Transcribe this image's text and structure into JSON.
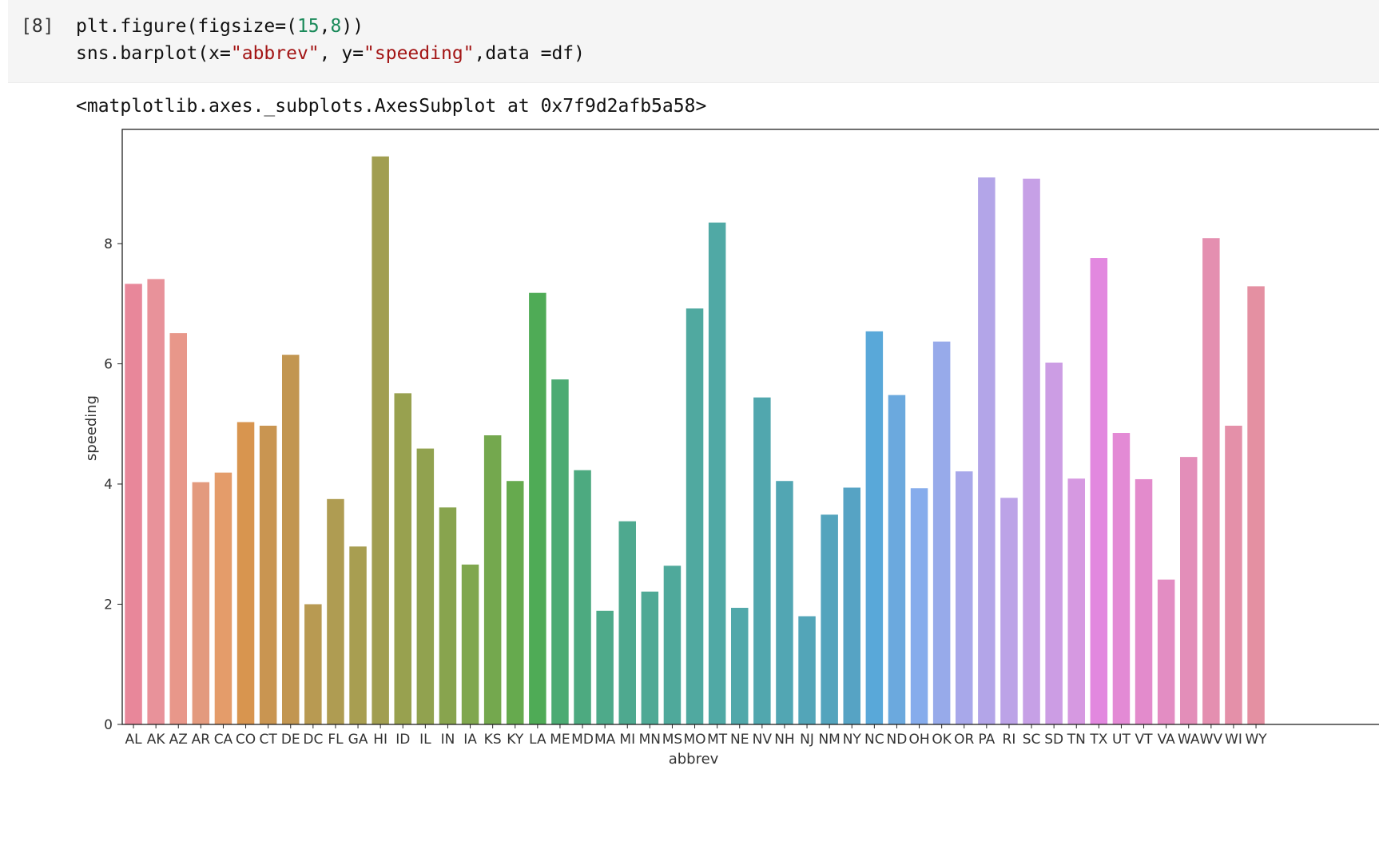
{
  "cell": {
    "prompt": "[8]",
    "code_line1": {
      "a": "plt.figure(figsize=(",
      "n1": "15",
      "b": ",",
      "n2": "8",
      "c": "))"
    },
    "code_line2": {
      "a": "sns.barplot(x=",
      "s1": "\"abbrev\"",
      "b": ", y=",
      "s2": "\"speeding\"",
      "c": ",data =df)"
    },
    "output": "<matplotlib.axes._subplots.AxesSubplot at 0x7f9d2afb5a58>"
  },
  "chart_data": {
    "type": "bar",
    "xlabel": "abbrev",
    "ylabel": "speeding",
    "ylim": [
      0,
      9.9
    ],
    "yticks": [
      0,
      2,
      4,
      6,
      8
    ],
    "grid": false,
    "categories": [
      "AL",
      "AK",
      "AZ",
      "AR",
      "CA",
      "CO",
      "CT",
      "DE",
      "DC",
      "FL",
      "GA",
      "HI",
      "ID",
      "IL",
      "IN",
      "IA",
      "KS",
      "KY",
      "LA",
      "ME",
      "MD",
      "MA",
      "MI",
      "MN",
      "MS",
      "MO",
      "MT",
      "NE",
      "NV",
      "NH",
      "NJ",
      "NM",
      "NY",
      "NC",
      "ND",
      "OH",
      "OK",
      "OR",
      "PA",
      "RI",
      "SC",
      "SD",
      "TN",
      "TX",
      "UT",
      "VT",
      "VA",
      "WA",
      "WV",
      "WI",
      "WY"
    ],
    "values": [
      7.33,
      7.41,
      6.51,
      4.03,
      4.19,
      5.03,
      4.97,
      6.15,
      2.0,
      3.75,
      2.96,
      9.45,
      5.51,
      4.59,
      3.61,
      2.66,
      4.81,
      4.05,
      7.18,
      5.74,
      4.23,
      1.89,
      3.38,
      2.21,
      2.64,
      6.92,
      8.35,
      1.94,
      5.44,
      4.05,
      1.8,
      3.49,
      3.94,
      6.54,
      5.48,
      3.93,
      6.37,
      4.21,
      9.1,
      3.77,
      9.08,
      6.02,
      4.09,
      7.76,
      4.85,
      4.08,
      2.41,
      4.45,
      8.09,
      4.97,
      7.29
    ],
    "colors": [
      "#e8879a",
      "#e8929a",
      "#e8978a",
      "#e39a7e",
      "#e49c6a",
      "#d8954f",
      "#c99551",
      "#c29651",
      "#b89a52",
      "#af9c52",
      "#a89e51",
      "#a19e50",
      "#98a14f",
      "#91a24f",
      "#88a44e",
      "#80a74e",
      "#74a84e",
      "#66aa4e",
      "#4fab56",
      "#4cab73",
      "#4daa80",
      "#4eaa8a",
      "#4ea98f",
      "#4fa995",
      "#4fa99b",
      "#50a9a0",
      "#50a9a5",
      "#51a8aa",
      "#51a7ae",
      "#52a6b3",
      "#53a5b8",
      "#54a4bd",
      "#56a3c4",
      "#59a8d9",
      "#6ba9de",
      "#86acec",
      "#97aaea",
      "#a8a8ea",
      "#b3a5e8",
      "#bca3e7",
      "#c6a0e6",
      "#cc9de4",
      "#d699e1",
      "#e288df",
      "#e38ad5",
      "#e38bcc",
      "#e38dc3",
      "#e38eb9",
      "#e48fb0",
      "#e490a9",
      "#e490a2"
    ]
  }
}
